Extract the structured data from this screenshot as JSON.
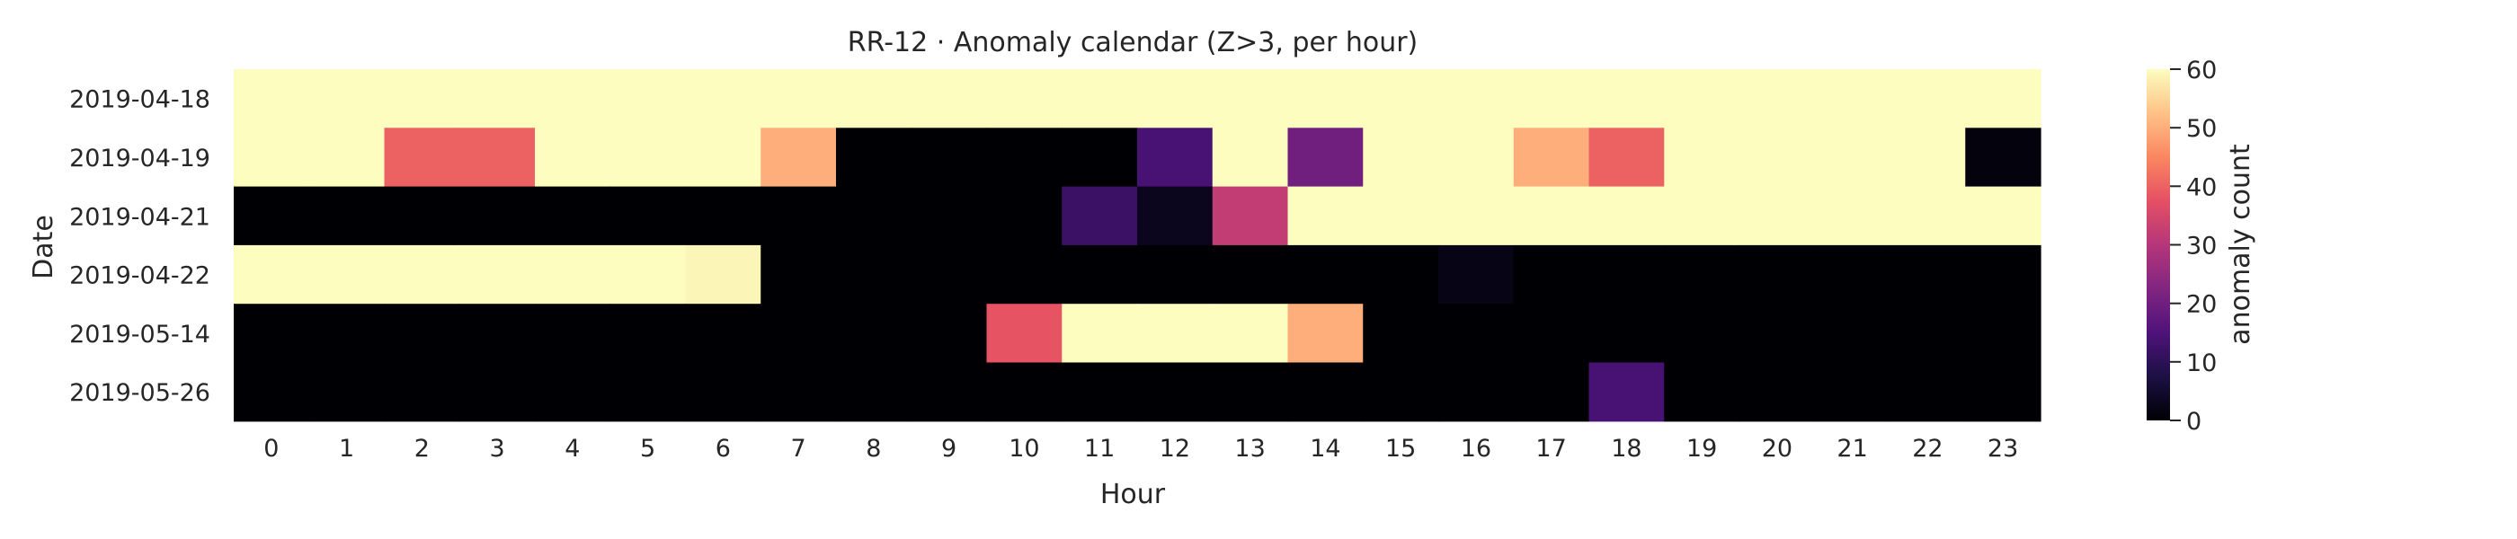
{
  "chart_data": {
    "type": "heatmap",
    "title": "RR-12 · Anomaly calendar (Z>3, per hour)",
    "xlabel": "Hour",
    "ylabel": "Date",
    "x": [
      "0",
      "1",
      "2",
      "3",
      "4",
      "5",
      "6",
      "7",
      "8",
      "9",
      "10",
      "11",
      "12",
      "13",
      "14",
      "15",
      "16",
      "17",
      "18",
      "19",
      "20",
      "21",
      "22",
      "23"
    ],
    "y": [
      "2019-04-18",
      "2019-04-19",
      "2019-04-21",
      "2019-04-22",
      "2019-05-14",
      "2019-05-26"
    ],
    "values": [
      [
        60,
        60,
        60,
        60,
        60,
        60,
        60,
        60,
        60,
        60,
        60,
        60,
        60,
        60,
        60,
        60,
        60,
        60,
        60,
        60,
        60,
        60,
        60,
        60
      ],
      [
        60,
        60,
        40,
        40,
        60,
        60,
        60,
        50,
        0,
        0,
        0,
        0,
        14,
        60,
        20,
        60,
        60,
        50,
        40,
        60,
        60,
        60,
        60,
        1
      ],
      [
        0,
        0,
        0,
        0,
        0,
        0,
        0,
        0,
        0,
        0,
        0,
        12,
        3,
        32,
        60,
        60,
        60,
        60,
        60,
        60,
        60,
        60,
        60,
        60
      ],
      [
        60,
        60,
        60,
        60,
        60,
        60,
        59,
        0,
        0,
        0,
        0,
        0,
        0,
        0,
        0,
        0,
        2,
        0,
        0,
        0,
        0,
        0,
        0,
        0
      ],
      [
        0,
        0,
        0,
        0,
        0,
        0,
        0,
        0,
        0,
        0,
        38,
        60,
        60,
        60,
        50,
        0,
        0,
        0,
        0,
        0,
        0,
        0,
        0,
        0
      ],
      [
        0,
        0,
        0,
        0,
        0,
        0,
        0,
        0,
        0,
        0,
        0,
        0,
        0,
        0,
        0,
        0,
        0,
        0,
        14,
        0,
        0,
        0,
        0,
        0
      ]
    ],
    "colorbar": {
      "label": "anomaly count",
      "range": [
        0,
        60
      ],
      "ticks": [
        "0",
        "10",
        "20",
        "30",
        "40",
        "50",
        "60"
      ],
      "colormap": "magma"
    },
    "grid": false,
    "legend": "right"
  }
}
